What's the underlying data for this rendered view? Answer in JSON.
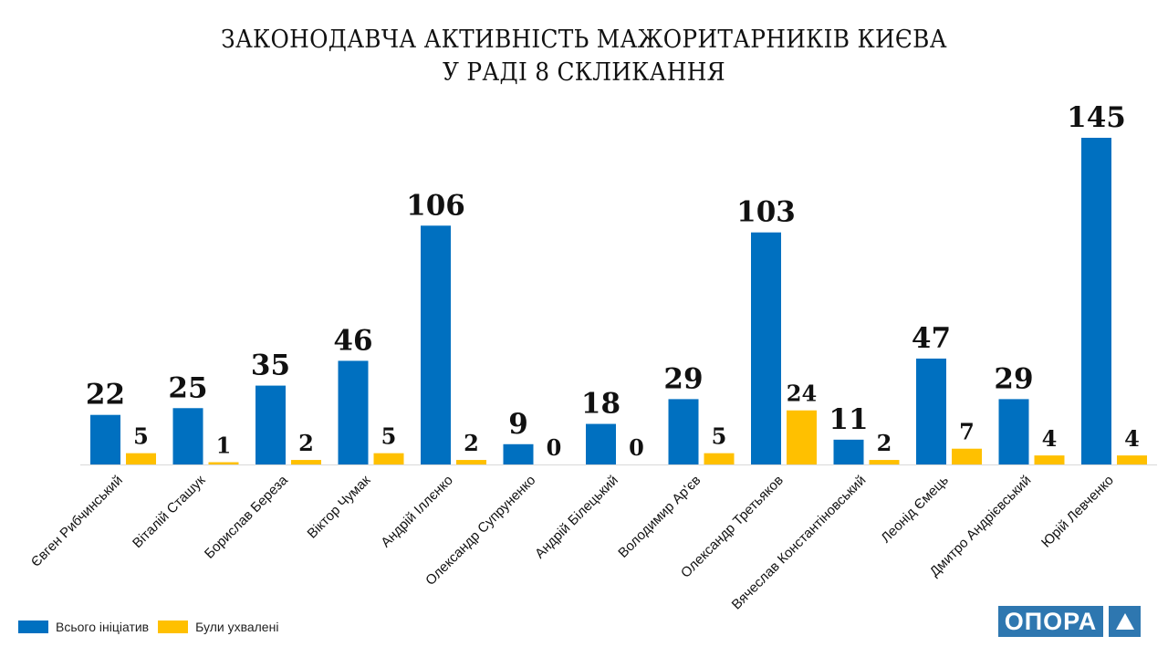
{
  "chart_data": {
    "type": "bar",
    "title_line1": "ЗАКОНОДАВЧА АКТИВНІСТЬ МАЖОРИТАРНИКІВ КИЄВА",
    "title_line2": "У РАДІ 8 СКЛИКАННЯ",
    "categories": [
      "Євген Рибчинський",
      "Віталій Сташук",
      "Борислав Береза",
      "Віктор Чумак",
      "Андрій Іллєнко",
      "Олександр Супруненко",
      "Андрій Білецький",
      "Володимир Ар'єв",
      "Олександр Третьяков",
      "Вячеслав Константіновський",
      "Леонід Ємець",
      "Дмитро Андрієвський",
      "Юрій Левченко"
    ],
    "series": [
      {
        "name": "Всього ініціатив",
        "color": "#0070c0",
        "values": [
          22,
          25,
          35,
          46,
          106,
          9,
          18,
          29,
          103,
          11,
          47,
          29,
          145
        ]
      },
      {
        "name": "Були ухвалені",
        "color": "#ffc000",
        "values": [
          5,
          1,
          2,
          5,
          2,
          0,
          0,
          5,
          24,
          2,
          7,
          4,
          4
        ]
      }
    ],
    "ylim": [
      0,
      145
    ],
    "grid": false,
    "legend_position": "bottom-left"
  },
  "logo": {
    "text": "ОПОРА",
    "icon": "triangle-icon",
    "color": "#2e77b0"
  }
}
